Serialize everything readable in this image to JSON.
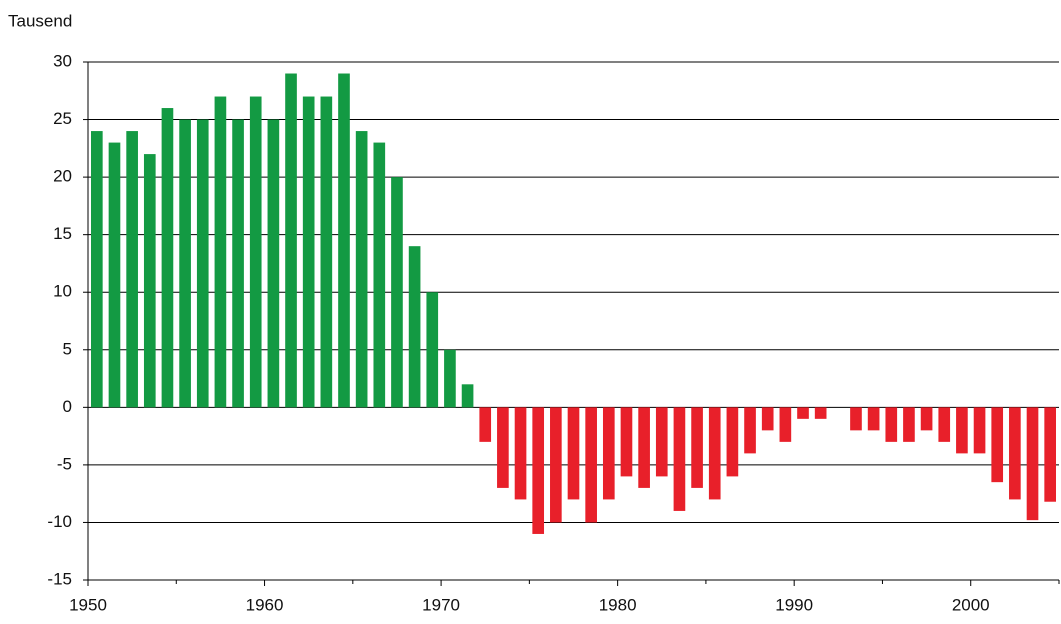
{
  "chart_data": {
    "type": "bar",
    "y_label": "Tausend",
    "x": [
      1950,
      1951,
      1952,
      1953,
      1954,
      1955,
      1956,
      1957,
      1958,
      1959,
      1960,
      1961,
      1962,
      1963,
      1964,
      1965,
      1966,
      1967,
      1968,
      1969,
      1970,
      1971,
      1972,
      1973,
      1974,
      1975,
      1976,
      1977,
      1978,
      1979,
      1980,
      1981,
      1982,
      1983,
      1984,
      1985,
      1986,
      1987,
      1988,
      1989,
      1990,
      1991,
      1992,
      1993,
      1994,
      1995,
      1996,
      1997,
      1998,
      1999,
      2000,
      2001,
      2002,
      2003,
      2004
    ],
    "values": [
      24,
      23,
      24,
      22,
      26,
      25,
      25,
      27,
      25,
      27,
      25,
      29,
      27,
      27,
      29,
      24,
      23,
      20,
      14,
      10,
      5,
      2,
      -3,
      -7,
      -8,
      -11,
      -10,
      -8,
      -10,
      -8,
      -6,
      -7,
      -6,
      -9,
      -7,
      -8,
      -6,
      -4,
      -2,
      -3,
      -1,
      -1,
      0,
      -2,
      -2,
      -3,
      -3,
      -2,
      -3,
      -4,
      -4,
      -6.5,
      -8,
      -9.8,
      -8.2
    ],
    "colors": {
      "positive": "#139a43",
      "negative": "#e8202a"
    },
    "xlim": [
      1950,
      2005
    ],
    "xticks": [
      1950,
      1960,
      1970,
      1980,
      1990,
      2000
    ],
    "ylim": [
      -15,
      30
    ],
    "yticks": [
      -15,
      -10,
      -5,
      0,
      5,
      10,
      15,
      20,
      25,
      30
    ],
    "grid": true
  }
}
